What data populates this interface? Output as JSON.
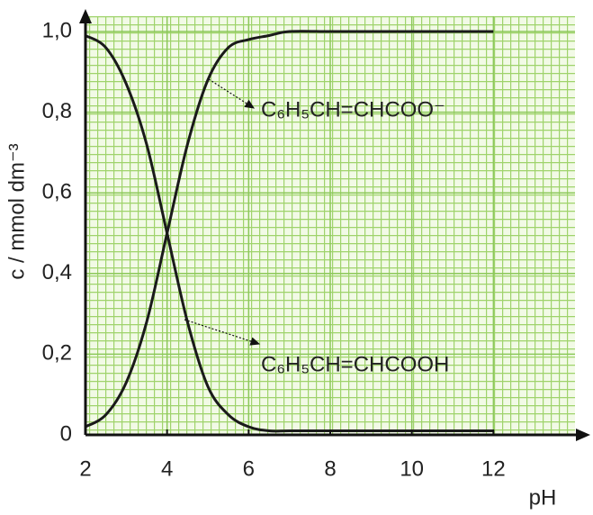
{
  "chart_data": {
    "type": "line",
    "x": [
      2,
      2.5,
      3,
      3.5,
      4,
      4.5,
      5,
      5.5,
      6,
      6.5,
      7,
      8,
      9,
      10,
      11,
      12
    ],
    "series": [
      {
        "name": "C₆H₅CH=CHCOO⁻",
        "color": "#1a1a1a",
        "values": [
          0.02,
          0.05,
          0.13,
          0.28,
          0.5,
          0.72,
          0.88,
          0.96,
          0.98,
          0.99,
          1.0,
          1.0,
          1.0,
          1.0,
          1.0,
          1.0
        ]
      },
      {
        "name": "C₆H₅CH=CHCOOH",
        "color": "#1a1a1a",
        "values": [
          0.99,
          0.96,
          0.87,
          0.72,
          0.5,
          0.28,
          0.12,
          0.05,
          0.02,
          0.01,
          0.01,
          0.01,
          0.01,
          0.01,
          0.01,
          0.01
        ]
      }
    ],
    "xlabel": "pH",
    "ylabel": "c / mmol dm⁻³",
    "xlim": [
      2,
      14
    ],
    "ylim": [
      0,
      1
    ],
    "xticks": [
      2,
      4,
      6,
      8,
      10,
      12
    ],
    "yticks": [
      0,
      {
        "value": 0.2,
        "label": "0,2"
      },
      {
        "value": 0.4,
        "label": "0,4"
      },
      {
        "value": 0.6,
        "label": "0,6"
      },
      {
        "value": 0.8,
        "label": "0,8"
      },
      {
        "value": 1,
        "label": "1,0"
      }
    ],
    "grid": true
  }
}
